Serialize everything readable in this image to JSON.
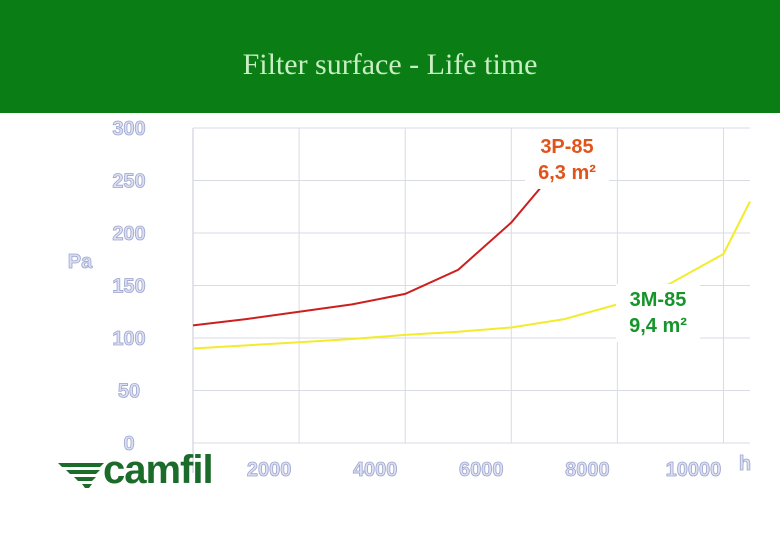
{
  "header": {
    "title": "Filter surface - Life time"
  },
  "logo": {
    "text": "camfil",
    "icon": "camfil-wing-logo-icon"
  },
  "colors": {
    "header_bg": "#0a7d14",
    "title_text": "#c8efc4",
    "tick_label": "#dde0f2",
    "tick_label_stroke": "#9ca4cf",
    "series_3p": "#cc1f1f",
    "series_3m": "#f2ec2c",
    "label_3p": "#e0541c",
    "label_3m": "#15952a",
    "grid": "#d9dbe4"
  },
  "chart_data": {
    "type": "line",
    "title": "Filter surface - Life time",
    "ylabel": "Pa",
    "xlabel": "h",
    "xlim": [
      0,
      10500
    ],
    "ylim": [
      0,
      300
    ],
    "x_ticks": [
      2000,
      4000,
      6000,
      8000,
      10000
    ],
    "x_tick_labels": [
      "2000",
      "4000",
      "6000",
      "8000",
      "10000"
    ],
    "y_ticks": [
      0,
      50,
      100,
      150,
      200,
      250,
      300
    ],
    "y_tick_labels": [
      "0",
      "50",
      "100",
      "150",
      "200",
      "250",
      "300"
    ],
    "grid": true,
    "series": [
      {
        "name": "3P-85 6,3 m²",
        "label_lines": [
          "3P-85",
          "6,3 m²"
        ],
        "x": [
          0,
          1000,
          2000,
          3000,
          4000,
          5000,
          6000,
          7000
        ],
        "values": [
          112,
          118,
          125,
          132,
          142,
          165,
          210,
          270
        ]
      },
      {
        "name": "3M-85 9,4 m²",
        "label_lines": [
          "3M-85",
          "9,4 m²"
        ],
        "x": [
          0,
          1000,
          2000,
          3000,
          4000,
          5000,
          6000,
          7000,
          8000,
          9000,
          10000,
          10500
        ],
        "values": [
          90,
          93,
          96,
          99,
          103,
          106,
          110,
          118,
          132,
          152,
          180,
          230
        ]
      }
    ]
  }
}
